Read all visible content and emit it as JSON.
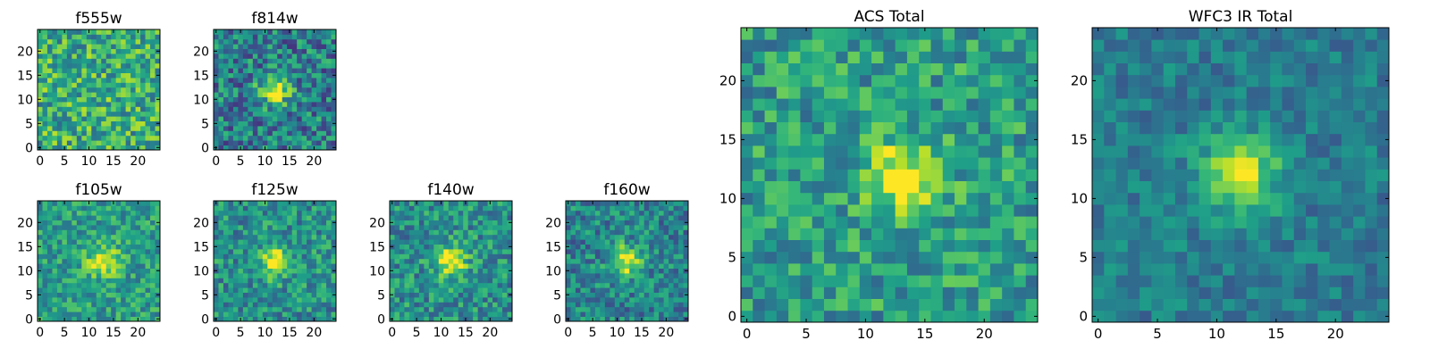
{
  "figure": {
    "colormap": "viridis",
    "pixel_grid": [
      25,
      25
    ],
    "origin": "lower"
  },
  "chart_data": [
    {
      "type": "heatmap",
      "title": "f555w",
      "source": "f555w",
      "xticks": [
        0,
        5,
        10,
        15,
        20
      ],
      "yticks": [
        0,
        5,
        10,
        15,
        20
      ],
      "xlim": [
        -0.5,
        24.5
      ],
      "ylim": [
        -0.5,
        24.5
      ],
      "noise_level": 0.55,
      "baseline": 0.62,
      "source_peak": 0.05,
      "source_center": [
        12,
        12
      ]
    },
    {
      "type": "heatmap",
      "title": "f814w",
      "source": "f814w",
      "xticks": [
        0,
        5,
        10,
        15,
        20
      ],
      "yticks": [
        0,
        5,
        10,
        15,
        20
      ],
      "xlim": [
        -0.5,
        24.5
      ],
      "ylim": [
        -0.5,
        24.5
      ],
      "noise_level": 0.55,
      "baseline": 0.42,
      "source_peak": 0.5,
      "source_center": [
        12,
        12
      ]
    },
    {
      "type": "heatmap",
      "title": "f105w",
      "source": "f105w",
      "xticks": [
        0,
        5,
        10,
        15,
        20
      ],
      "yticks": [
        0,
        5,
        10,
        15,
        20
      ],
      "xlim": [
        -0.5,
        24.5
      ],
      "ylim": [
        -0.5,
        24.5
      ],
      "noise_level": 0.4,
      "baseline": 0.55,
      "source_peak": 0.45,
      "source_center": [
        13,
        12
      ]
    },
    {
      "type": "heatmap",
      "title": "f125w",
      "source": "f125w",
      "xticks": [
        0,
        5,
        10,
        15,
        20
      ],
      "yticks": [
        0,
        5,
        10,
        15,
        20
      ],
      "xlim": [
        -0.5,
        24.5
      ],
      "ylim": [
        -0.5,
        24.5
      ],
      "noise_level": 0.45,
      "baseline": 0.5,
      "source_peak": 0.5,
      "source_center": [
        12,
        12
      ]
    },
    {
      "type": "heatmap",
      "title": "f140w",
      "source": "f140w",
      "xticks": [
        0,
        5,
        10,
        15,
        20
      ],
      "yticks": [
        0,
        5,
        10,
        15,
        20
      ],
      "xlim": [
        -0.5,
        24.5
      ],
      "ylim": [
        -0.5,
        24.5
      ],
      "noise_level": 0.45,
      "baseline": 0.5,
      "source_peak": 0.5,
      "source_center": [
        12,
        12
      ]
    },
    {
      "type": "heatmap",
      "title": "f160w",
      "source": "f160w",
      "xticks": [
        0,
        5,
        10,
        15,
        20
      ],
      "yticks": [
        0,
        5,
        10,
        15,
        20
      ],
      "xlim": [
        -0.5,
        24.5
      ],
      "ylim": [
        -0.5,
        24.5
      ],
      "noise_level": 0.45,
      "baseline": 0.45,
      "source_peak": 0.55,
      "source_center": [
        12,
        12
      ]
    },
    {
      "type": "heatmap",
      "title": "ACS Total",
      "source": "acs_total",
      "xticks": [
        0,
        5,
        10,
        15,
        20
      ],
      "yticks": [
        0,
        5,
        10,
        15,
        20
      ],
      "xlim": [
        -0.5,
        24.5
      ],
      "ylim": [
        -0.5,
        24.5
      ],
      "noise_level": 0.45,
      "baseline": 0.55,
      "source_peak": 0.45,
      "source_center": [
        13,
        12
      ]
    },
    {
      "type": "heatmap",
      "title": "WFC3 IR Total",
      "source": "wfc3_ir_total",
      "xticks": [
        0,
        5,
        10,
        15,
        20
      ],
      "yticks": [
        0,
        5,
        10,
        15,
        20
      ],
      "xlim": [
        -0.5,
        24.5
      ],
      "ylim": [
        -0.5,
        24.5
      ],
      "noise_level": 0.28,
      "baseline": 0.42,
      "source_peak": 0.55,
      "source_center": [
        12,
        12
      ]
    }
  ]
}
